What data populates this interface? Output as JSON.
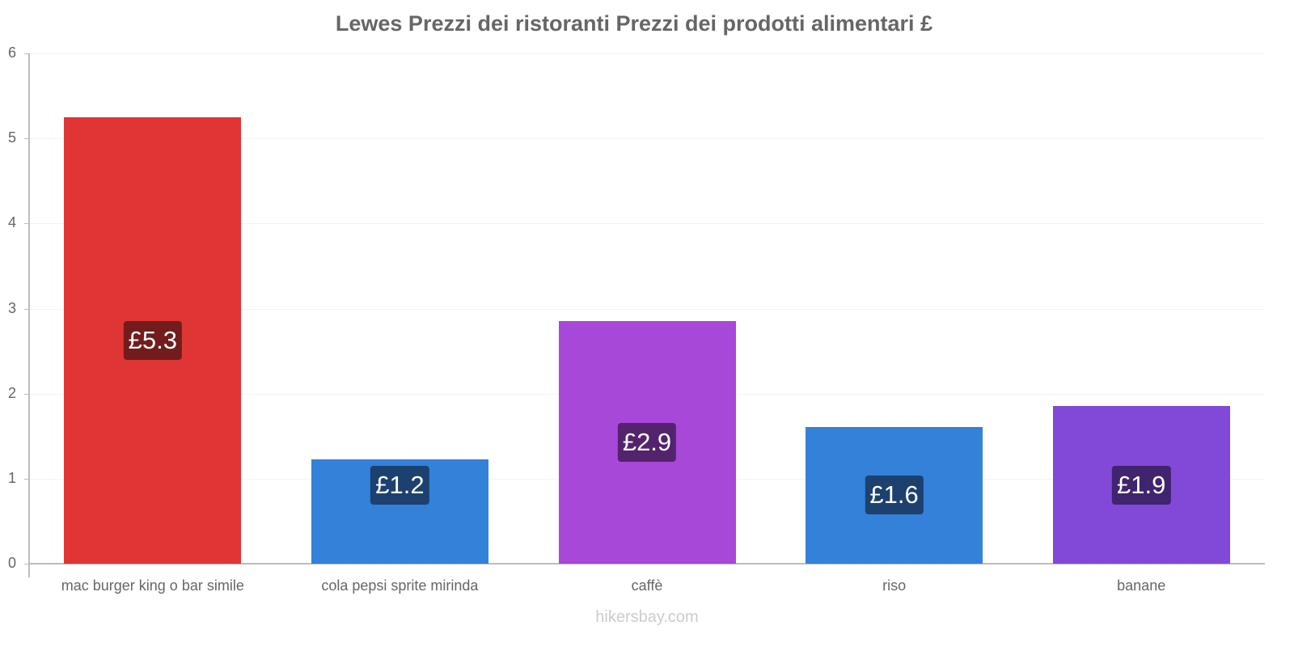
{
  "chart_data": {
    "type": "bar",
    "title": "Lewes Prezzi dei ristoranti Prezzi dei prodotti alimentari £",
    "categories": [
      "mac burger king o bar simile",
      "cola pepsi sprite mirinda",
      "caffè",
      "riso",
      "banane"
    ],
    "values": [
      5.25,
      1.23,
      2.85,
      1.61,
      1.85
    ],
    "value_labels": [
      "£5.3",
      "£1.2",
      "£2.9",
      "£1.6",
      "£1.9"
    ],
    "bar_colors": [
      "#e03535",
      "#3381d9",
      "#a848d8",
      "#3381d9",
      "#8249d8"
    ],
    "label_bg_colors": [
      "#721c1c",
      "#1c416e",
      "#54236e",
      "#1c416e",
      "#40246e"
    ],
    "xlabel": "",
    "ylabel": "",
    "ylim": [
      0,
      6
    ],
    "yticks": [
      "0",
      "1",
      "2",
      "3",
      "4",
      "5",
      "6"
    ],
    "grid": true,
    "legend": "none"
  },
  "footer": {
    "watermark": "hikersbay.com"
  }
}
